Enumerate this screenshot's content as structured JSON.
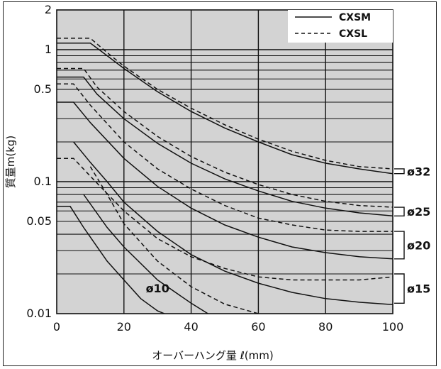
{
  "chart_data": {
    "type": "line",
    "xlabel": "オーバーハング量 ℓ(mm)",
    "ylabel": "質量m(kg)",
    "x_scale": "linear",
    "y_scale": "log",
    "xlim": [
      0,
      100
    ],
    "ylim": [
      0.01,
      2
    ],
    "x_ticks": [
      "0",
      "20",
      "40",
      "60",
      "80",
      "100"
    ],
    "y_ticks": [
      {
        "value": 2,
        "label": "2"
      },
      {
        "value": 1,
        "label": "1"
      },
      {
        "value": 0.5,
        "label": "0.5"
      },
      {
        "value": 0.1,
        "label": "0.1"
      },
      {
        "value": 0.05,
        "label": "0.05"
      },
      {
        "value": 0.01,
        "label": "0.01"
      }
    ],
    "grid": true,
    "legend_position": "top-right",
    "legend": [
      {
        "name": "CXSM",
        "style": "solid"
      },
      {
        "name": "CXSL",
        "style": "dashed"
      }
    ],
    "bore_labels": [
      {
        "label": "ø32",
        "y_low": 0.115,
        "y_high": 0.125
      },
      {
        "label": "ø25",
        "y_low": 0.055,
        "y_high": 0.064
      },
      {
        "label": "ø20",
        "y_low": 0.026,
        "y_high": 0.042
      },
      {
        "label": "ø15",
        "y_low": 0.012,
        "y_high": 0.02
      }
    ],
    "annotations": [
      {
        "text": "ø10",
        "x": 30,
        "y": 0.0145
      }
    ],
    "series": [
      {
        "name": "CXSL",
        "bore": "ø32",
        "style": "dashed",
        "points": [
          [
            0,
            1.22
          ],
          [
            10,
            1.22
          ],
          [
            15,
            0.95
          ],
          [
            20,
            0.75
          ],
          [
            30,
            0.5
          ],
          [
            40,
            0.36
          ],
          [
            50,
            0.27
          ],
          [
            60,
            0.21
          ],
          [
            70,
            0.17
          ],
          [
            80,
            0.145
          ],
          [
            90,
            0.13
          ],
          [
            100,
            0.125
          ]
        ]
      },
      {
        "name": "CXSM",
        "bore": "ø32",
        "style": "solid",
        "points": [
          [
            0,
            1.12
          ],
          [
            10,
            1.12
          ],
          [
            15,
            0.9
          ],
          [
            20,
            0.72
          ],
          [
            30,
            0.48
          ],
          [
            40,
            0.34
          ],
          [
            50,
            0.255
          ],
          [
            60,
            0.2
          ],
          [
            70,
            0.16
          ],
          [
            80,
            0.138
          ],
          [
            90,
            0.125
          ],
          [
            100,
            0.115
          ]
        ]
      },
      {
        "name": "CXSL",
        "bore": "ø25",
        "style": "dashed",
        "points": [
          [
            0,
            0.72
          ],
          [
            8,
            0.72
          ],
          [
            12,
            0.52
          ],
          [
            20,
            0.34
          ],
          [
            30,
            0.22
          ],
          [
            40,
            0.155
          ],
          [
            50,
            0.118
          ],
          [
            60,
            0.095
          ],
          [
            70,
            0.08
          ],
          [
            80,
            0.071
          ],
          [
            90,
            0.066
          ],
          [
            100,
            0.064
          ]
        ]
      },
      {
        "name": "CXSM",
        "bore": "ø25",
        "style": "solid",
        "points": [
          [
            0,
            0.62
          ],
          [
            8,
            0.62
          ],
          [
            12,
            0.46
          ],
          [
            20,
            0.3
          ],
          [
            30,
            0.195
          ],
          [
            40,
            0.138
          ],
          [
            50,
            0.105
          ],
          [
            60,
            0.085
          ],
          [
            70,
            0.071
          ],
          [
            80,
            0.063
          ],
          [
            90,
            0.058
          ],
          [
            100,
            0.055
          ]
        ]
      },
      {
        "name": "CXSL",
        "bore": "ø20",
        "style": "dashed",
        "points": [
          [
            0,
            0.55
          ],
          [
            5,
            0.55
          ],
          [
            10,
            0.38
          ],
          [
            20,
            0.2
          ],
          [
            30,
            0.125
          ],
          [
            40,
            0.088
          ],
          [
            50,
            0.066
          ],
          [
            60,
            0.053
          ],
          [
            70,
            0.047
          ],
          [
            80,
            0.043
          ],
          [
            90,
            0.042
          ],
          [
            100,
            0.042
          ]
        ]
      },
      {
        "name": "CXSM",
        "bore": "ø20",
        "style": "solid",
        "points": [
          [
            0,
            0.4
          ],
          [
            5,
            0.4
          ],
          [
            10,
            0.28
          ],
          [
            20,
            0.15
          ],
          [
            30,
            0.092
          ],
          [
            40,
            0.063
          ],
          [
            50,
            0.047
          ],
          [
            60,
            0.038
          ],
          [
            70,
            0.032
          ],
          [
            80,
            0.029
          ],
          [
            90,
            0.027
          ],
          [
            100,
            0.026
          ]
        ]
      },
      {
        "name": "CXSL",
        "bore": "ø15",
        "style": "dashed",
        "points": [
          [
            0,
            0.15
          ],
          [
            5,
            0.15
          ],
          [
            10,
            0.11
          ],
          [
            20,
            0.06
          ],
          [
            30,
            0.037
          ],
          [
            40,
            0.027
          ],
          [
            50,
            0.022
          ],
          [
            60,
            0.019
          ],
          [
            70,
            0.018
          ],
          [
            80,
            0.018
          ],
          [
            90,
            0.018
          ],
          [
            100,
            0.019
          ]
        ]
      },
      {
        "name": "CXSM",
        "bore": "ø15",
        "style": "solid",
        "points": [
          [
            5,
            0.2
          ],
          [
            10,
            0.14
          ],
          [
            15,
            0.1
          ],
          [
            20,
            0.07
          ],
          [
            30,
            0.042
          ],
          [
            40,
            0.028
          ],
          [
            50,
            0.021
          ],
          [
            60,
            0.017
          ],
          [
            70,
            0.0145
          ],
          [
            80,
            0.013
          ],
          [
            90,
            0.0122
          ],
          [
            100,
            0.0117
          ]
        ]
      },
      {
        "name": "CXSL",
        "bore": "ø10",
        "style": "dashed",
        "points": [
          [
            10,
            0.13
          ],
          [
            15,
            0.08
          ],
          [
            20,
            0.048
          ],
          [
            30,
            0.025
          ],
          [
            40,
            0.016
          ],
          [
            50,
            0.0118
          ],
          [
            60,
            0.01
          ]
        ]
      },
      {
        "name": "CXSM",
        "bore": "ø10",
        "style": "solid",
        "points": [
          [
            0,
            0.065
          ],
          [
            4,
            0.065
          ],
          [
            8,
            0.045
          ],
          [
            15,
            0.025
          ],
          [
            20,
            0.018
          ],
          [
            25,
            0.013
          ],
          [
            30,
            0.0105
          ],
          [
            32,
            0.01
          ]
        ]
      },
      {
        "name": "CXSM",
        "bore": "ø10",
        "style": "solid",
        "points": [
          [
            8,
            0.08
          ],
          [
            15,
            0.045
          ],
          [
            20,
            0.032
          ],
          [
            30,
            0.018
          ],
          [
            40,
            0.012
          ],
          [
            45,
            0.01
          ]
        ]
      }
    ]
  }
}
